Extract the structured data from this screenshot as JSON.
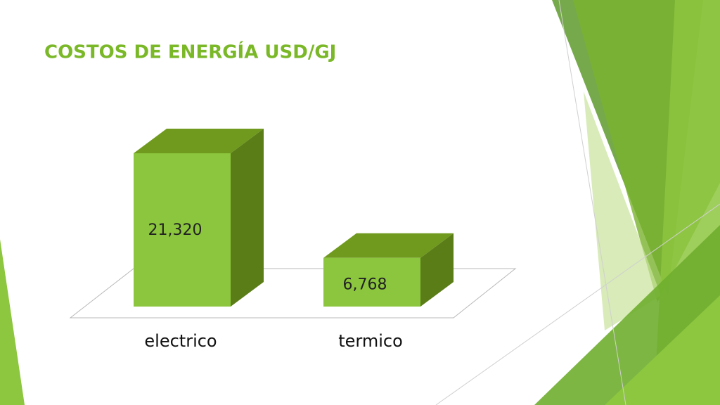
{
  "chart_data": {
    "type": "bar3d",
    "title": "COSTOS DE ENERGÍA USD/GJ",
    "categories": [
      "electrico",
      "termico"
    ],
    "values": [
      21320,
      6768
    ],
    "value_labels": [
      "21,320",
      "6,768"
    ],
    "color": "#8cc63e"
  }
}
